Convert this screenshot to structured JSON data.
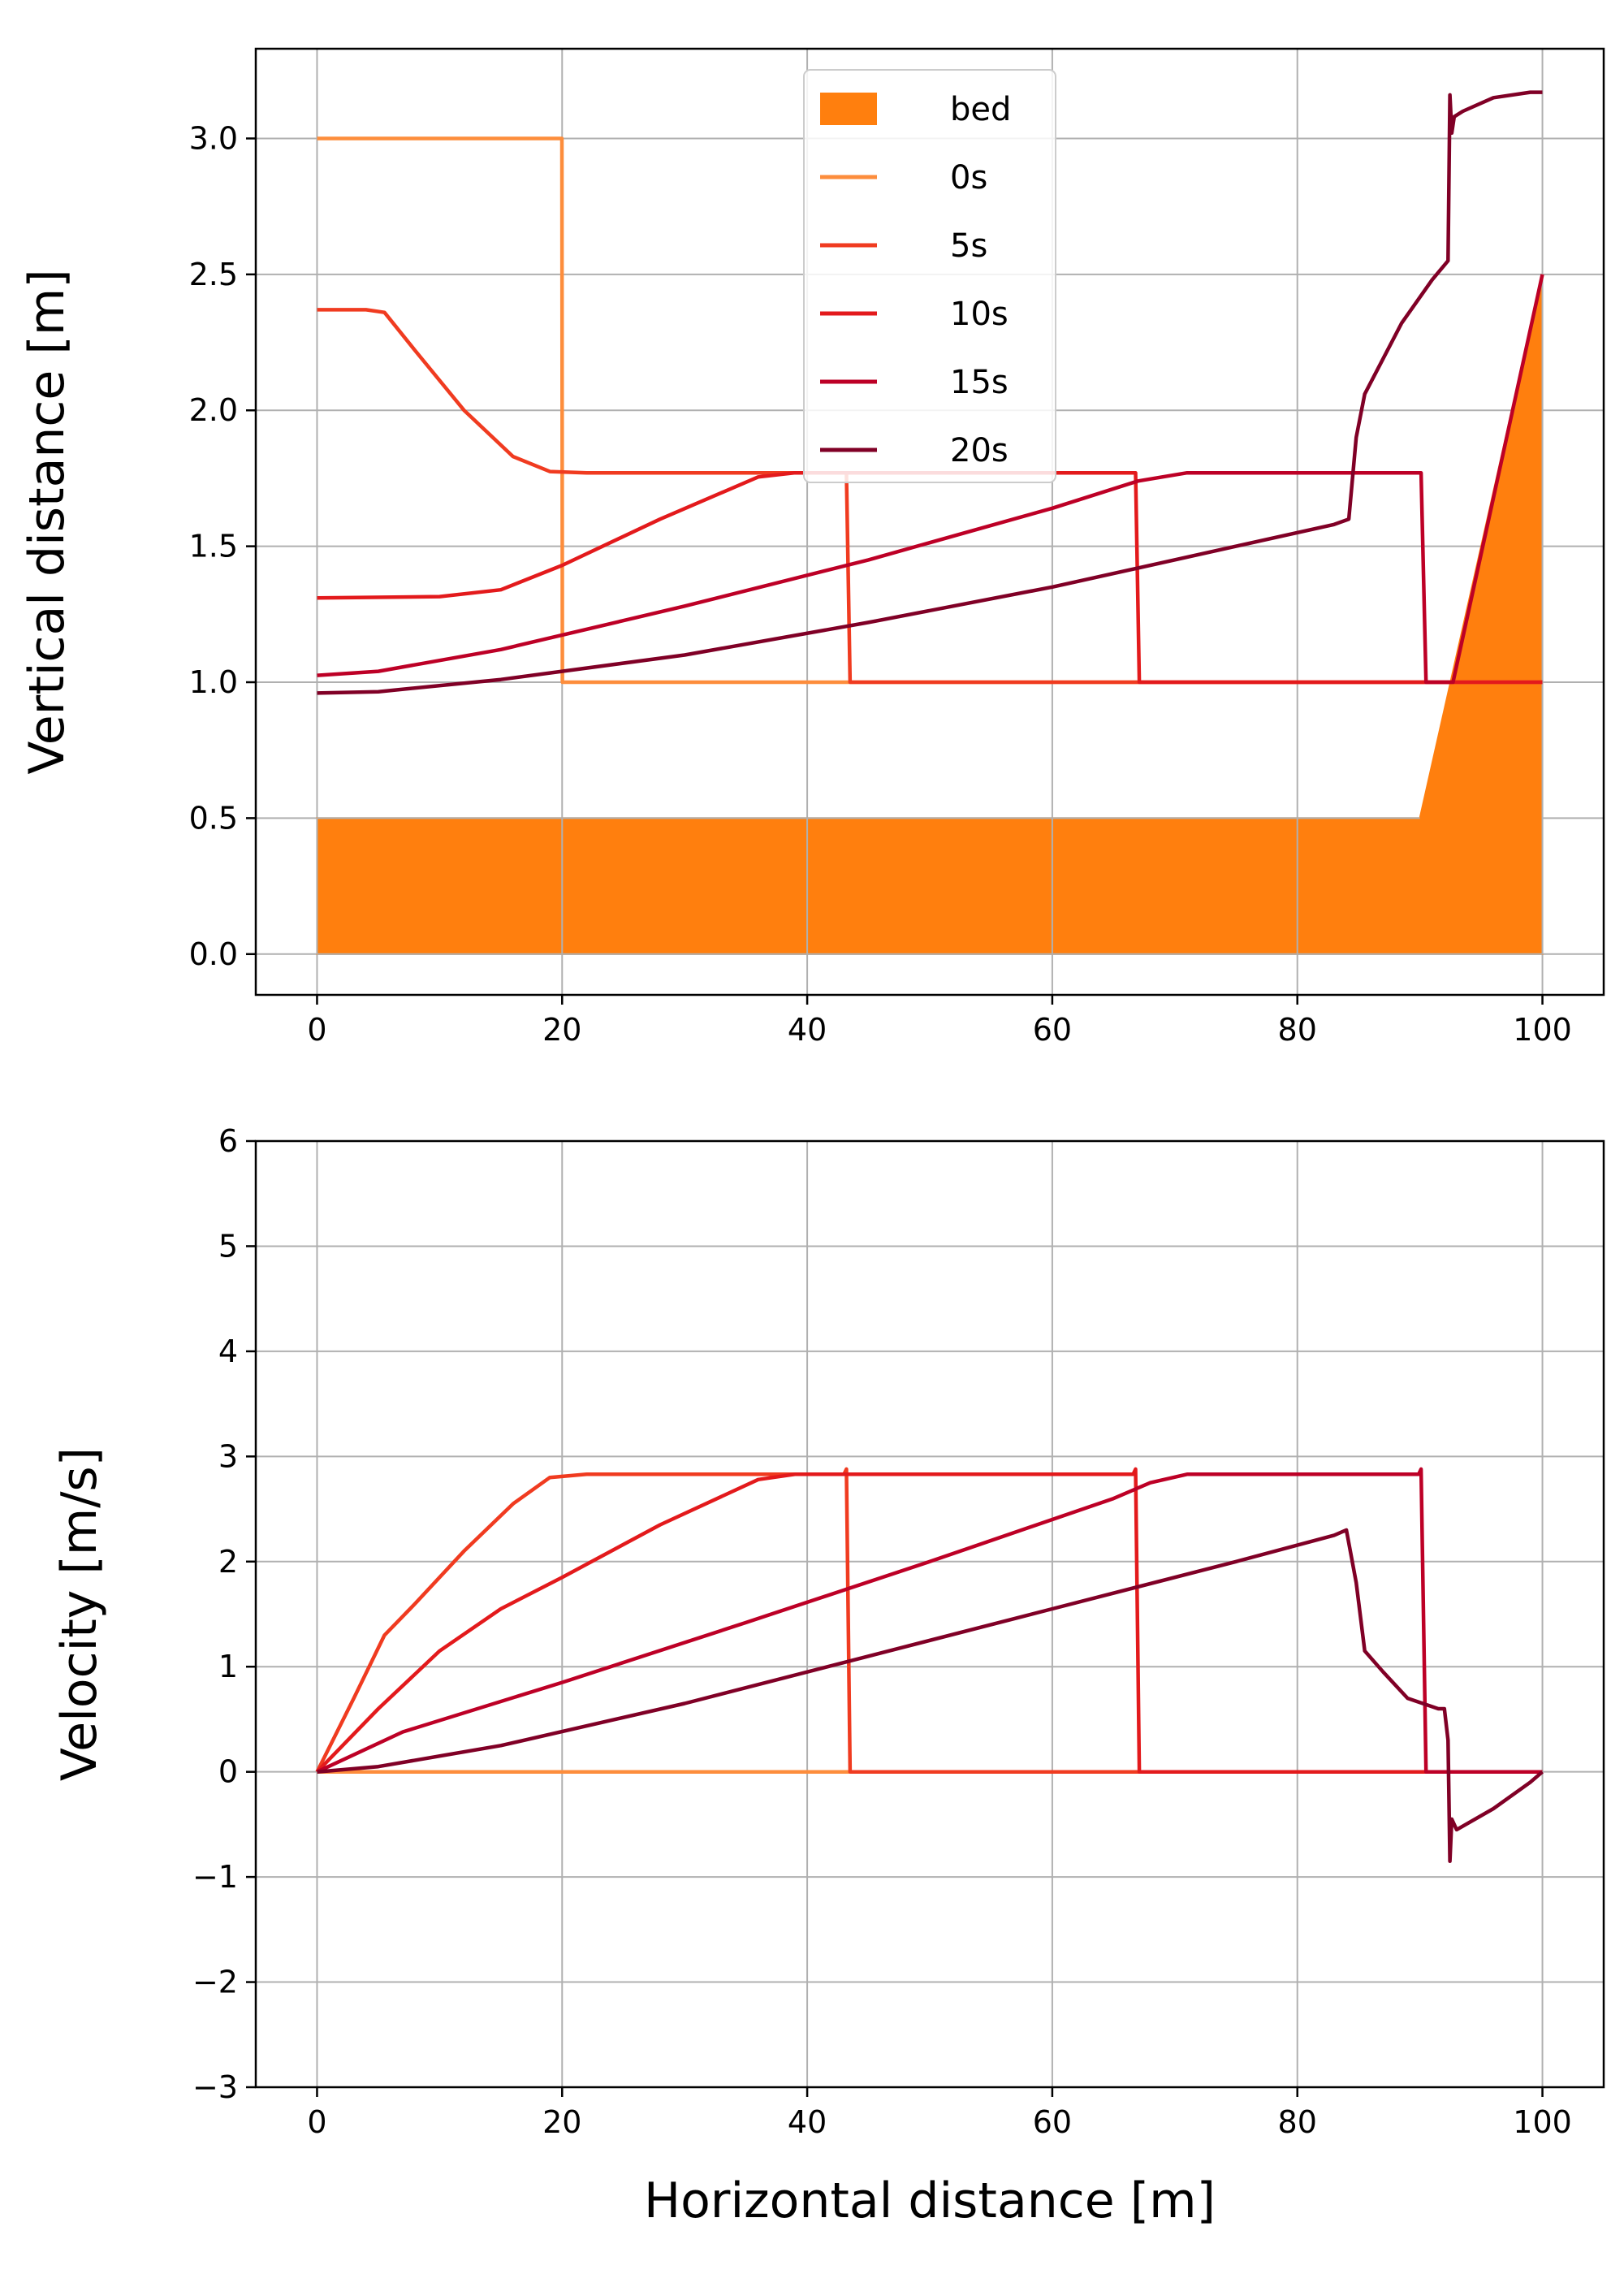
{
  "chart_data": [
    {
      "type": "line",
      "title": "",
      "xlabel": "",
      "ylabel": "Vertical distance [m]",
      "xlim": [
        -5,
        105
      ],
      "ylim": [
        -0.15,
        3.33
      ],
      "xticks": [
        0,
        20,
        40,
        60,
        80,
        100
      ],
      "yticks": [
        0.0,
        0.5,
        1.0,
        1.5,
        2.0,
        2.5,
        3.0
      ],
      "ytick_labels": [
        "0.0",
        "0.5",
        "1.0",
        "1.5",
        "2.0",
        "2.5",
        "3.0"
      ],
      "grid": true,
      "legend_position": "upper-center",
      "bed": {
        "name": "bed",
        "color": "#ff7f0e",
        "x": [
          0,
          90,
          100,
          100,
          0
        ],
        "y": [
          0.5,
          0.5,
          2.5,
          0,
          0
        ]
      },
      "series": [
        {
          "name": "0s",
          "color": "#fd8d3c",
          "x": [
            0,
            19.98,
            20.02,
            100
          ],
          "y": [
            3.0,
            3.0,
            1.0,
            1.0
          ]
        },
        {
          "name": "5s",
          "color": "#f03b20",
          "x": [
            0,
            4,
            5.5,
            8,
            12,
            16,
            19,
            22,
            43.2,
            43.5,
            100
          ],
          "y": [
            2.37,
            2.37,
            2.36,
            2.22,
            2.0,
            1.83,
            1.775,
            1.77,
            1.77,
            1.0,
            1.0
          ]
        },
        {
          "name": "10s",
          "color": "#e31a1c",
          "x": [
            0,
            10,
            15,
            20,
            28,
            36,
            39,
            66.8,
            67.1,
            100
          ],
          "y": [
            1.31,
            1.315,
            1.34,
            1.43,
            1.6,
            1.755,
            1.77,
            1.77,
            1.0,
            1.0
          ]
        },
        {
          "name": "15s",
          "color": "#bd0026",
          "x": [
            0,
            5,
            15,
            30,
            45,
            60,
            67,
            71,
            90.1,
            90.5,
            92.7,
            100
          ],
          "y": [
            1.025,
            1.04,
            1.12,
            1.28,
            1.45,
            1.64,
            1.74,
            1.77,
            1.77,
            1.0,
            1.0,
            2.5
          ]
        },
        {
          "name": "20s",
          "color": "#800026",
          "x": [
            0,
            5,
            15,
            30,
            45,
            60,
            75,
            83,
            84.2,
            84.8,
            85.5,
            87,
            88.5,
            91,
            92.3,
            92.45,
            92.6,
            92.8,
            93.5,
            96,
            99,
            100
          ],
          "y": [
            0.96,
            0.965,
            1.01,
            1.1,
            1.22,
            1.35,
            1.5,
            1.58,
            1.6,
            1.9,
            2.06,
            2.19,
            2.32,
            2.48,
            2.55,
            3.16,
            3.02,
            3.08,
            3.1,
            3.15,
            3.17,
            3.17
          ]
        }
      ]
    },
    {
      "type": "line",
      "title": "",
      "xlabel": "Horizontal distance [m]",
      "ylabel": "Velocity [m/s]",
      "xlim": [
        -5,
        105
      ],
      "ylim": [
        -3,
        6
      ],
      "xticks": [
        0,
        20,
        40,
        60,
        80,
        100
      ],
      "yticks": [
        -3,
        -2,
        -1,
        0,
        1,
        2,
        3,
        4,
        5,
        6
      ],
      "ytick_labels": [
        "−3",
        "−2",
        "−1",
        "0",
        "1",
        "2",
        "3",
        "4",
        "5",
        "6"
      ],
      "grid": true,
      "series": [
        {
          "name": "0s",
          "color": "#fd8d3c",
          "x": [
            0,
            100
          ],
          "y": [
            0,
            0
          ]
        },
        {
          "name": "5s",
          "color": "#f03b20",
          "x": [
            0,
            3,
            5.5,
            8,
            12,
            16,
            19,
            22,
            43.0,
            43.2,
            43.5,
            100
          ],
          "y": [
            0,
            0.7,
            1.3,
            1.6,
            2.1,
            2.55,
            2.8,
            2.83,
            2.83,
            2.88,
            0,
            0
          ]
        },
        {
          "name": "10s",
          "color": "#e31a1c",
          "x": [
            0,
            5,
            10,
            15,
            20,
            28,
            36,
            39,
            66.6,
            66.8,
            67.1,
            100
          ],
          "y": [
            0,
            0.6,
            1.15,
            1.55,
            1.85,
            2.35,
            2.78,
            2.83,
            2.83,
            2.88,
            0,
            0
          ]
        },
        {
          "name": "15s",
          "color": "#bd0026",
          "x": [
            0,
            7,
            20,
            35,
            50,
            65,
            68,
            71,
            89.9,
            90.1,
            90.5,
            100
          ],
          "y": [
            0,
            0.38,
            0.85,
            1.42,
            2.0,
            2.6,
            2.75,
            2.83,
            2.83,
            2.88,
            0,
            0
          ]
        },
        {
          "name": "20s",
          "color": "#800026",
          "x": [
            0,
            5,
            15,
            30,
            45,
            60,
            75,
            83,
            84,
            84.8,
            85.5,
            87,
            89,
            91.5,
            92.0,
            92.3,
            92.45,
            92.6,
            93,
            96,
            99,
            100
          ],
          "y": [
            0,
            0.05,
            0.25,
            0.65,
            1.1,
            1.55,
            2.0,
            2.25,
            2.3,
            1.8,
            1.15,
            0.95,
            0.7,
            0.6,
            0.6,
            0.3,
            -0.85,
            -0.45,
            -0.55,
            -0.35,
            -0.1,
            0
          ]
        }
      ]
    }
  ]
}
